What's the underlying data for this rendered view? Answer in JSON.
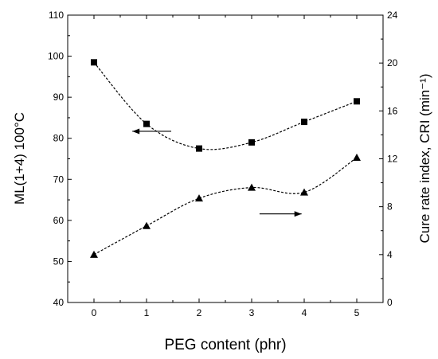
{
  "chart_data": {
    "type": "scatter",
    "x": [
      0,
      1,
      2,
      3,
      4,
      5
    ],
    "xlabel": "PEG content (phr)",
    "xlim": [
      -0.5,
      5.5
    ],
    "x_ticks": [
      "0",
      "1",
      "2",
      "3",
      "4",
      "5"
    ],
    "ylabel_left": "ML(1+4) 100°C",
    "ylim_left": [
      40,
      110
    ],
    "y_ticks_left": [
      "40",
      "50",
      "60",
      "70",
      "80",
      "90",
      "100",
      "110"
    ],
    "ylabel_right": "Cure rate index, CRI (min⁻¹)",
    "ylim_right": [
      0,
      24
    ],
    "y_ticks_right": [
      "0",
      "4",
      "8",
      "12",
      "16",
      "20",
      "24"
    ],
    "grid": false,
    "series": [
      {
        "marker": "square",
        "axis": "left",
        "values": [
          98.5,
          83.5,
          77.5,
          79,
          84,
          89
        ],
        "fit_curve": "dashed"
      },
      {
        "marker": "triangle",
        "axis": "right",
        "values": [
          4,
          6.4,
          8.7,
          9.6,
          9.2,
          12.1
        ],
        "fit_curve": "dotted"
      }
    ],
    "annotations": [
      {
        "type": "arrow",
        "direction": "left",
        "axis": "left",
        "x_from": 1.47,
        "x_to": 0.73,
        "y": 81.7
      },
      {
        "type": "arrow",
        "direction": "right",
        "axis": "right",
        "x_from": 3.15,
        "x_to": 3.95,
        "y": 7.4
      }
    ]
  }
}
